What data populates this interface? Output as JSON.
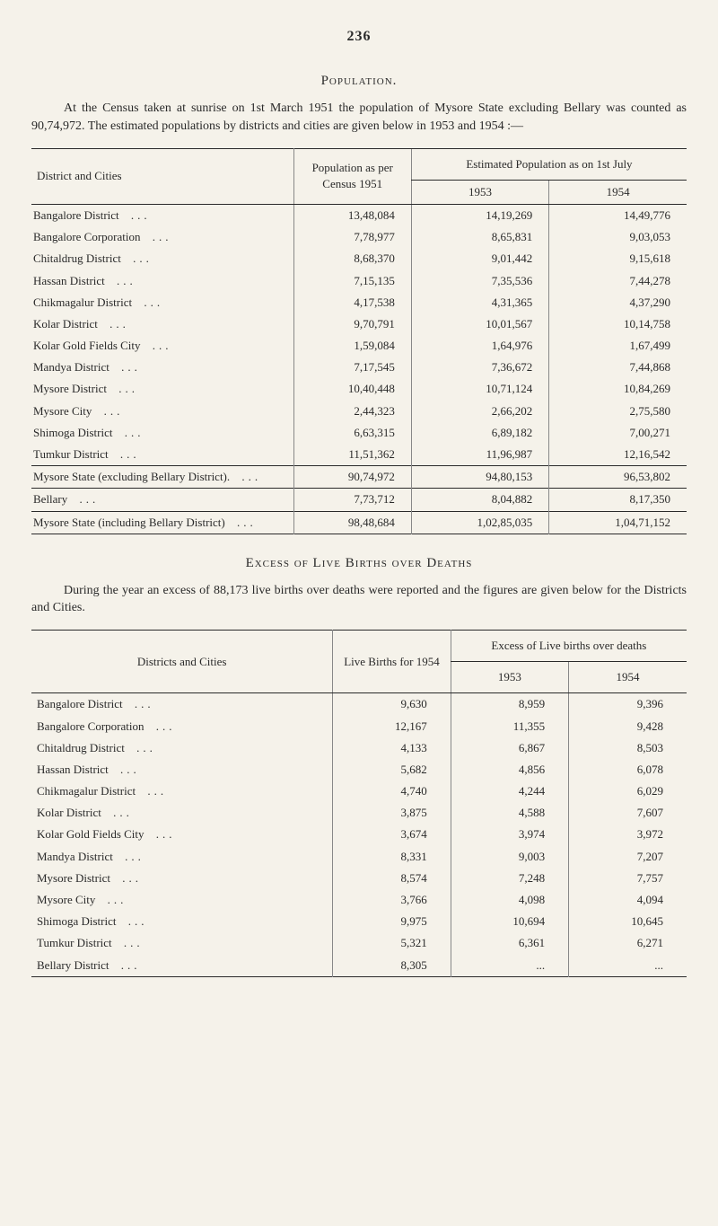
{
  "pageNumber": "236",
  "populationSection": {
    "heading": "Population.",
    "intro": "At the Census taken at sunrise on 1st March 1951 the population of Mysore State excluding Bellary was counted as 90,74,972.  The estimated populations by districts and cities are given below in 1953 and 1954 :—",
    "headers": {
      "districtCities": "District and Cities",
      "popCensus": "Population as per Census 1951",
      "estPop": "Estimated Population as on 1st July",
      "y1953": "1953",
      "y1954": "1954"
    },
    "rows": [
      {
        "label": "Bangalore District",
        "c1951": "13,48,084",
        "c1953": "14,19,269",
        "c1954": "14,49,776"
      },
      {
        "label": "Bangalore Corporation",
        "c1951": "7,78,977",
        "c1953": "8,65,831",
        "c1954": "9,03,053"
      },
      {
        "label": "Chitaldrug District",
        "c1951": "8,68,370",
        "c1953": "9,01,442",
        "c1954": "9,15,618"
      },
      {
        "label": "Hassan District",
        "c1951": "7,15,135",
        "c1953": "7,35,536",
        "c1954": "7,44,278"
      },
      {
        "label": "Chikmagalur District",
        "c1951": "4,17,538",
        "c1953": "4,31,365",
        "c1954": "4,37,290"
      },
      {
        "label": "Kolar District",
        "c1951": "9,70,791",
        "c1953": "10,01,567",
        "c1954": "10,14,758"
      },
      {
        "label": "Kolar Gold Fields City",
        "c1951": "1,59,084",
        "c1953": "1,64,976",
        "c1954": "1,67,499"
      },
      {
        "label": "Mandya District",
        "c1951": "7,17,545",
        "c1953": "7,36,672",
        "c1954": "7,44,868"
      },
      {
        "label": "Mysore District",
        "c1951": "10,40,448",
        "c1953": "10,71,124",
        "c1954": "10,84,269"
      },
      {
        "label": "Mysore City",
        "c1951": "2,44,323",
        "c1953": "2,66,202",
        "c1954": "2,75,580"
      },
      {
        "label": "Shimoga District",
        "c1951": "6,63,315",
        "c1953": "6,89,182",
        "c1954": "7,00,271"
      },
      {
        "label": "Tumkur District",
        "c1951": "11,51,362",
        "c1953": "11,96,987",
        "c1954": "12,16,542"
      }
    ],
    "subtotal1": {
      "label": "Mysore State (excluding Bellary District).",
      "c1951": "90,74,972",
      "c1953": "94,80,153",
      "c1954": "96,53,802"
    },
    "subtotal2": {
      "label": "Bellary",
      "c1951": "7,73,712",
      "c1953": "8,04,882",
      "c1954": "8,17,350"
    },
    "total": {
      "label": "Mysore State (including Bellary District)",
      "c1951": "98,48,684",
      "c1953": "1,02,85,035",
      "c1954": "1,04,71,152"
    }
  },
  "excessSection": {
    "heading": "Excess of Live Births over Deaths",
    "intro": "During the year an excess of 88,173 live births over deaths were reported and the figures are given below for the Districts and Cities.",
    "headers": {
      "districtCities": "Districts and Cities",
      "liveBirths": "Live Births for 1954",
      "excess": "Excess of Live births over deaths",
      "y1953": "1953",
      "y1954": "1954"
    },
    "rows": [
      {
        "label": "Bangalore District",
        "lb": "9,630",
        "e53": "8,959",
        "e54": "9,396"
      },
      {
        "label": "Bangalore Corporation",
        "lb": "12,167",
        "e53": "11,355",
        "e54": "9,428"
      },
      {
        "label": "Chitaldrug District",
        "lb": "4,133",
        "e53": "6,867",
        "e54": "8,503"
      },
      {
        "label": "Hassan District",
        "lb": "5,682",
        "e53": "4,856",
        "e54": "6,078"
      },
      {
        "label": "Chikmagalur District",
        "lb": "4,740",
        "e53": "4,244",
        "e54": "6,029"
      },
      {
        "label": "Kolar District",
        "lb": "3,875",
        "e53": "4,588",
        "e54": "7,607"
      },
      {
        "label": "Kolar Gold Fields City",
        "lb": "3,674",
        "e53": "3,974",
        "e54": "3,972"
      },
      {
        "label": "Mandya District",
        "lb": "8,331",
        "e53": "9,003",
        "e54": "7,207"
      },
      {
        "label": "Mysore District",
        "lb": "8,574",
        "e53": "7,248",
        "e54": "7,757"
      },
      {
        "label": "Mysore City",
        "lb": "3,766",
        "e53": "4,098",
        "e54": "4,094"
      },
      {
        "label": "Shimoga District",
        "lb": "9,975",
        "e53": "10,694",
        "e54": "10,645"
      },
      {
        "label": "Tumkur District",
        "lb": "5,321",
        "e53": "6,361",
        "e54": "6,271"
      },
      {
        "label": "Bellary District",
        "lb": "8,305",
        "e53": "...",
        "e54": "..."
      }
    ]
  }
}
